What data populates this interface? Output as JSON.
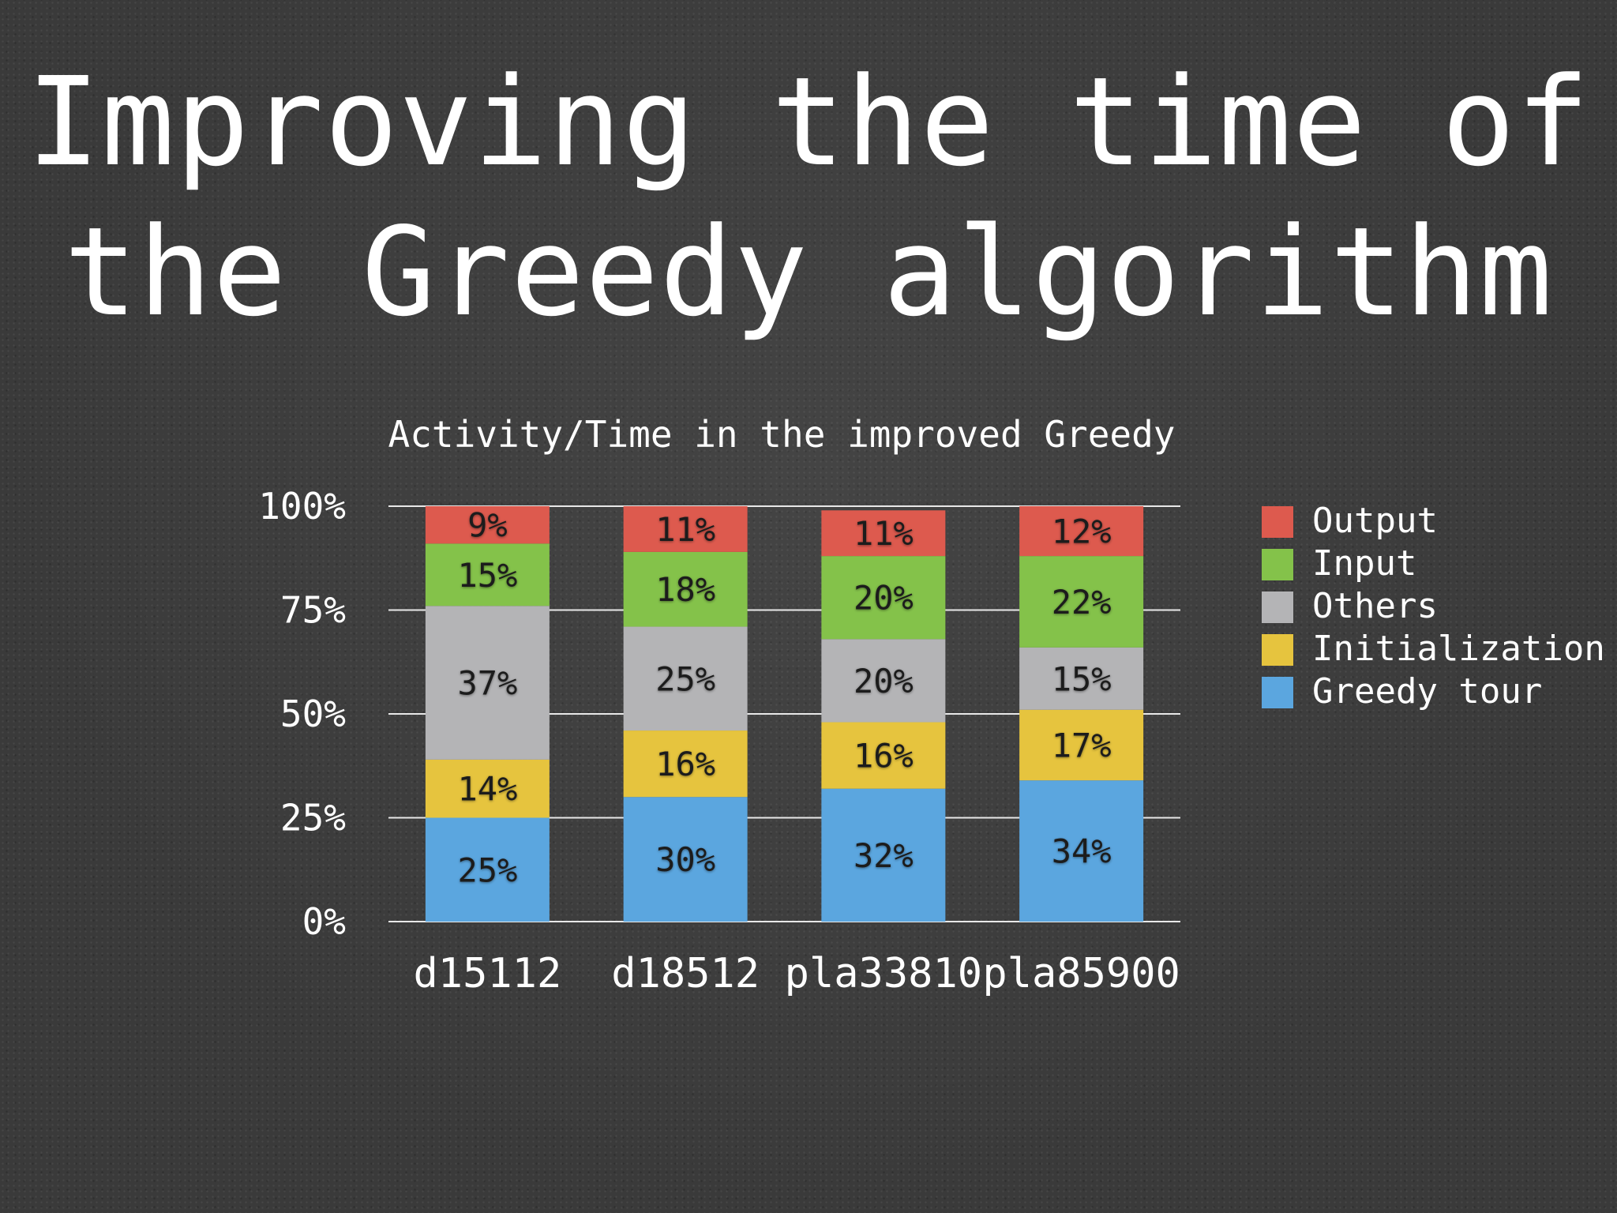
{
  "slide": {
    "title_line1": "Improving the time of",
    "title_line2": "the Greedy algorithm"
  },
  "chart_data": {
    "type": "bar",
    "stacked": true,
    "title": "Activity/Time in the improved Greedy",
    "categories": [
      "d15112",
      "d18512",
      "pla33810",
      "pla85900"
    ],
    "series": [
      {
        "name": "Greedy tour",
        "color": "#5ba6df",
        "values": [
          25,
          30,
          32,
          34
        ]
      },
      {
        "name": "Initialization",
        "color": "#e6c43e",
        "values": [
          14,
          16,
          16,
          17
        ]
      },
      {
        "name": "Others",
        "color": "#b4b4b6",
        "values": [
          37,
          25,
          20,
          15
        ]
      },
      {
        "name": "Input",
        "color": "#84c24a",
        "values": [
          15,
          18,
          20,
          22
        ]
      },
      {
        "name": "Output",
        "color": "#dd5a4e",
        "values": [
          9,
          11,
          11,
          12
        ]
      }
    ],
    "yticks": [
      "0%",
      "25%",
      "50%",
      "75%",
      "100%"
    ],
    "ylim": [
      0,
      100
    ],
    "legend": "right",
    "grid": true
  }
}
